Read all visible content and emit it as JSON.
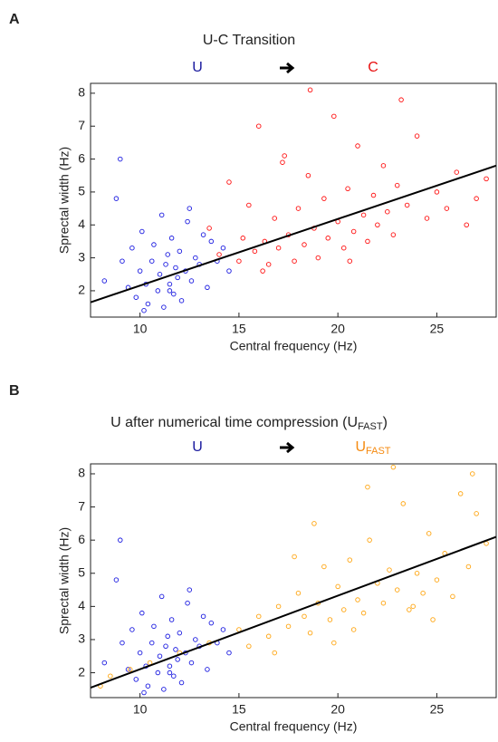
{
  "chart_data": [
    {
      "type": "scatter",
      "panel_label": "A",
      "title": {
        "text": "U-C Transition"
      },
      "xlabel": "Central frequency (Hz)",
      "ylabel": "Sprectal width (Hz)",
      "xlim": [
        7.5,
        28
      ],
      "ylim": [
        1.2,
        8.3
      ],
      "xticks": [
        10,
        15,
        20,
        25
      ],
      "yticks": [
        2,
        3,
        4,
        5,
        6,
        7,
        8
      ],
      "series": [
        {
          "name": "U",
          "color": "#1a1ae0",
          "label_color": "#1a1a9e",
          "x": [
            8.2,
            8.8,
            9.1,
            9.4,
            9.6,
            9.8,
            10.0,
            10.1,
            10.3,
            10.4,
            10.6,
            10.7,
            10.9,
            11.0,
            11.1,
            11.2,
            11.3,
            11.4,
            11.5,
            11.6,
            11.7,
            11.8,
            11.9,
            12.0,
            12.1,
            12.3,
            12.4,
            12.6,
            12.8,
            13.0,
            13.2,
            13.4,
            13.6,
            13.9,
            14.2,
            14.5,
            9.0,
            10.2,
            11.5,
            12.5
          ],
          "values": [
            2.3,
            4.8,
            2.9,
            2.1,
            3.3,
            1.8,
            2.6,
            3.8,
            2.2,
            1.6,
            2.9,
            3.4,
            2.0,
            2.5,
            4.3,
            1.5,
            2.8,
            3.1,
            2.2,
            3.6,
            1.9,
            2.7,
            2.4,
            3.2,
            1.7,
            2.6,
            4.1,
            2.3,
            3.0,
            2.8,
            3.7,
            2.1,
            3.5,
            2.9,
            3.3,
            2.6,
            6.0,
            1.4,
            2.0,
            4.5
          ]
        },
        {
          "name": "C",
          "color": "#ff1010",
          "label_color": "#e81010",
          "x": [
            13.5,
            14.0,
            14.5,
            15.0,
            15.2,
            15.5,
            15.8,
            16.0,
            16.3,
            16.5,
            16.8,
            17.0,
            17.3,
            17.5,
            17.8,
            18.0,
            18.3,
            18.5,
            18.8,
            19.0,
            19.3,
            19.5,
            19.8,
            20.0,
            20.3,
            20.5,
            20.8,
            21.0,
            21.3,
            21.5,
            21.8,
            22.0,
            22.3,
            22.5,
            22.8,
            23.0,
            23.5,
            24.0,
            24.5,
            25.0,
            25.5,
            26.0,
            26.5,
            27.0,
            27.5,
            16.2,
            18.6,
            20.6,
            23.2,
            17.2
          ],
          "values": [
            3.9,
            3.1,
            5.3,
            2.9,
            3.6,
            4.6,
            3.2,
            7.0,
            3.5,
            2.8,
            4.2,
            3.3,
            6.1,
            3.7,
            2.9,
            4.5,
            3.4,
            5.5,
            3.9,
            3.0,
            4.8,
            3.6,
            7.3,
            4.1,
            3.3,
            5.1,
            3.8,
            6.4,
            4.3,
            3.5,
            4.9,
            4.0,
            5.8,
            4.4,
            3.7,
            5.2,
            4.6,
            6.7,
            4.2,
            5.0,
            4.5,
            5.6,
            4.0,
            4.8,
            5.4,
            2.6,
            8.1,
            2.9,
            7.8,
            5.9
          ]
        }
      ],
      "fit": {
        "color": "#000000",
        "x": [
          7.5,
          28
        ],
        "values": [
          1.65,
          5.8
        ]
      }
    },
    {
      "type": "scatter",
      "panel_label": "B",
      "title": {
        "text": "U after numerical time compression (U",
        "subscript": "FAST",
        "suffix": ")"
      },
      "xlabel": "Central frequency (Hz)",
      "ylabel": "Sprectal width (Hz)",
      "xlim": [
        7.5,
        28
      ],
      "ylim": [
        1.25,
        8.3
      ],
      "xticks": [
        10,
        15,
        20,
        25
      ],
      "yticks": [
        2,
        3,
        4,
        5,
        6,
        7,
        8
      ],
      "series": [
        {
          "name": "U",
          "color": "#1a1ae0",
          "label_color": "#1a1a9e",
          "x": [
            8.2,
            8.8,
            9.1,
            9.4,
            9.6,
            9.8,
            10.0,
            10.1,
            10.3,
            10.4,
            10.6,
            10.7,
            10.9,
            11.0,
            11.1,
            11.2,
            11.3,
            11.4,
            11.5,
            11.6,
            11.7,
            11.8,
            11.9,
            12.0,
            12.1,
            12.3,
            12.4,
            12.6,
            12.8,
            13.0,
            13.2,
            13.4,
            13.6,
            13.9,
            14.2,
            14.5,
            9.0,
            10.2,
            11.5,
            12.5
          ],
          "values": [
            2.3,
            4.8,
            2.9,
            2.1,
            3.3,
            1.8,
            2.6,
            3.8,
            2.2,
            1.6,
            2.9,
            3.4,
            2.0,
            2.5,
            4.3,
            1.5,
            2.8,
            3.1,
            2.2,
            3.6,
            1.9,
            2.7,
            2.4,
            3.2,
            1.7,
            2.6,
            4.1,
            2.3,
            3.0,
            2.8,
            3.7,
            2.1,
            3.5,
            2.9,
            3.3,
            2.6,
            6.0,
            1.4,
            2.0,
            4.5
          ]
        },
        {
          "name": "U",
          "name_subscript": "FAST",
          "color": "#ffa510",
          "label_color": "#f58a10",
          "x": [
            8.0,
            8.5,
            9.5,
            10.5,
            12.0,
            13.5,
            15.0,
            15.5,
            16.0,
            16.5,
            17.0,
            17.5,
            18.0,
            18.3,
            18.6,
            19.0,
            19.3,
            19.6,
            20.0,
            20.3,
            20.6,
            21.0,
            21.3,
            21.6,
            22.0,
            22.3,
            22.6,
            23.0,
            23.3,
            23.6,
            24.0,
            24.3,
            24.6,
            25.0,
            25.4,
            25.8,
            26.2,
            26.6,
            27.0,
            27.5,
            16.8,
            18.8,
            20.8,
            22.8,
            24.8,
            21.5,
            23.8,
            19.8,
            26.8,
            17.8
          ],
          "values": [
            1.6,
            1.9,
            2.1,
            2.3,
            2.6,
            2.9,
            3.3,
            2.8,
            3.7,
            3.1,
            4.0,
            3.4,
            4.4,
            3.7,
            3.2,
            4.1,
            5.2,
            3.6,
            4.6,
            3.9,
            5.4,
            4.2,
            3.8,
            6.0,
            4.7,
            4.1,
            5.1,
            4.5,
            7.1,
            3.9,
            5.0,
            4.4,
            6.2,
            4.8,
            5.6,
            4.3,
            7.4,
            5.2,
            6.8,
            5.9,
            2.6,
            6.5,
            3.3,
            8.2,
            3.6,
            7.6,
            4.0,
            2.9,
            8.0,
            5.5
          ]
        }
      ],
      "fit": {
        "color": "#000000",
        "x": [
          7.5,
          28
        ],
        "values": [
          1.55,
          6.1
        ]
      }
    }
  ]
}
